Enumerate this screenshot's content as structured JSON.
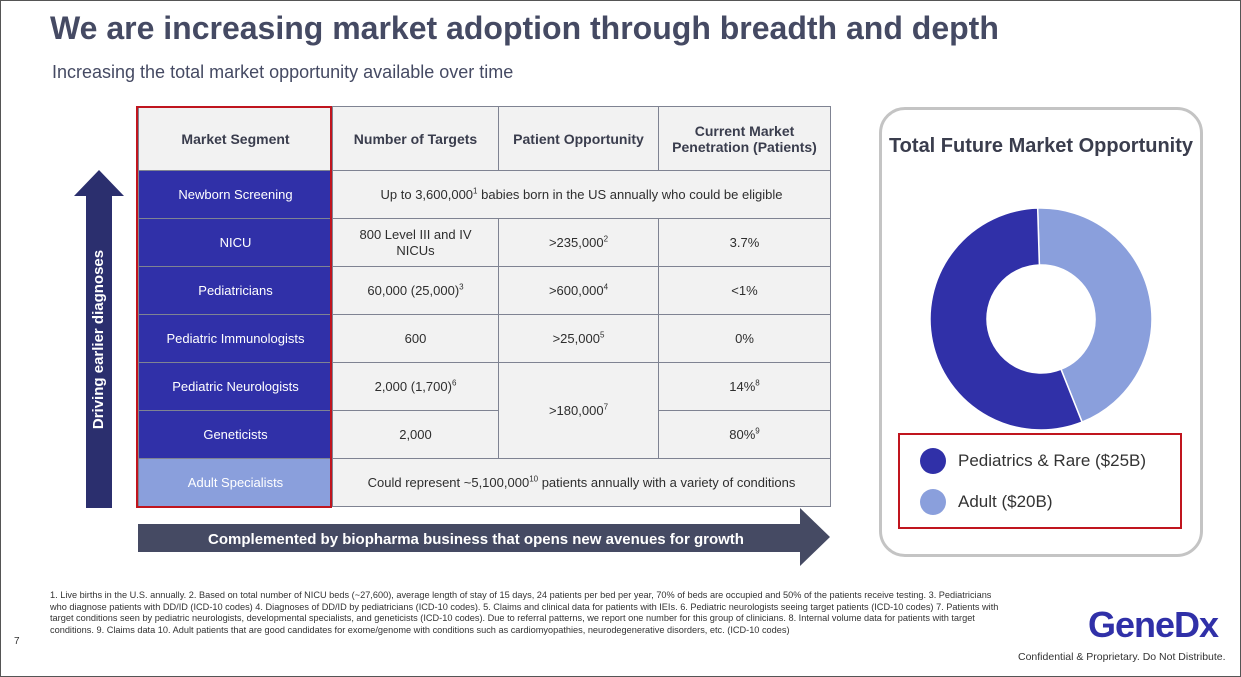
{
  "title": "We are increasing market adoption through breadth and depth",
  "subtitle": "Increasing the total market opportunity available over time",
  "vertical_arrow_label": "Driving earlier diagnoses",
  "table": {
    "headers": [
      "Market Segment",
      "Number of Targets",
      "Patient Opportunity",
      "Current Market Penetration (Patients)"
    ],
    "rows": {
      "newborn": {
        "segment": "Newborn Screening",
        "span_text_pre": "Up to 3,600,000",
        "span_sup": "1",
        "span_text_post": " babies born in the US annually who could be eligible"
      },
      "nicu": {
        "segment": "NICU",
        "targets": "800 Level III and IV NICUs",
        "opportunity": ">235,000",
        "opportunity_sup": "2",
        "penetration": "3.7%"
      },
      "pediatricians": {
        "segment": "Pediatricians",
        "targets": "60,000 (25,000)",
        "targets_sup": "3",
        "opportunity": ">600,000",
        "opportunity_sup": "4",
        "penetration": "<1%"
      },
      "immunologists": {
        "segment": "Pediatric Immunologists",
        "targets": "600",
        "opportunity": ">25,000",
        "opportunity_sup": "5",
        "penetration": "0%"
      },
      "neurologists": {
        "segment": "Pediatric Neurologists",
        "targets": "2,000 (1,700)",
        "targets_sup": "6",
        "opportunity": ">180,000",
        "opportunity_sup": "7",
        "penetration": "14%",
        "penetration_sup": "8"
      },
      "geneticists": {
        "segment": "Geneticists",
        "targets": "2,000",
        "penetration": "80%",
        "penetration_sup": "9"
      },
      "adult": {
        "segment": "Adult Specialists",
        "span_text_pre": "Could represent ~5,100,000",
        "span_sup": "10",
        "span_text_post": " patients annually with a variety of conditions"
      }
    }
  },
  "horizontal_arrow_label": "Complemented by biopharma business that opens new avenues for growth",
  "panel": {
    "title": "Total Future Market Opportunity",
    "legend": [
      {
        "label": "Pediatrics & Rare ($25B)",
        "color": "#3030a8"
      },
      {
        "label": "Adult ($20B)",
        "color": "#8a9fdc"
      }
    ]
  },
  "chart_data": {
    "type": "pie",
    "title": "Total Future Market Opportunity",
    "categories": [
      "Pediatrics & Rare",
      "Adult"
    ],
    "values": [
      25,
      20
    ],
    "unit": "$B",
    "colors": [
      "#3030a8",
      "#8a9fdc"
    ]
  },
  "footnotes": {
    "n1": "1. Live births in the U.S. annually.",
    "n2": "2. Based on total number of NICU beds (~27,600), average length of stay of 15 days, 24 patients per bed per year, 70% of beds are occupied and 50% of the patients receive testing.",
    "n3": "3. Pediatricians who diagnose patients with DD/ID (ICD-10 codes)",
    "n4": "4. Diagnoses of DD/ID by pediatricians (ICD-10 codes).",
    "n5": "5. Claims and clinical data for patients with IEIs.",
    "n6": "6. Pediatric neurologists seeing target patients (ICD-10 codes)",
    "n7": "7. Patients with target conditions seen by pediatric neurologists, developmental specialists, and geneticists (ICD-10 codes). Due to referral patterns, we report one number for this group of clinicians.",
    "n8": "8. Internal volume data for patients with target conditions.",
    "n9": "9. Claims data",
    "n10": "10. Adult patients that are good candidates for exome/genome with conditions such as cardiomyopathies, neurodegenerative disorders, etc. (ICD-10 codes)"
  },
  "page_number": "7",
  "logo": "GeneDx",
  "confidential": "Confidential & Proprietary. Do Not Distribute."
}
